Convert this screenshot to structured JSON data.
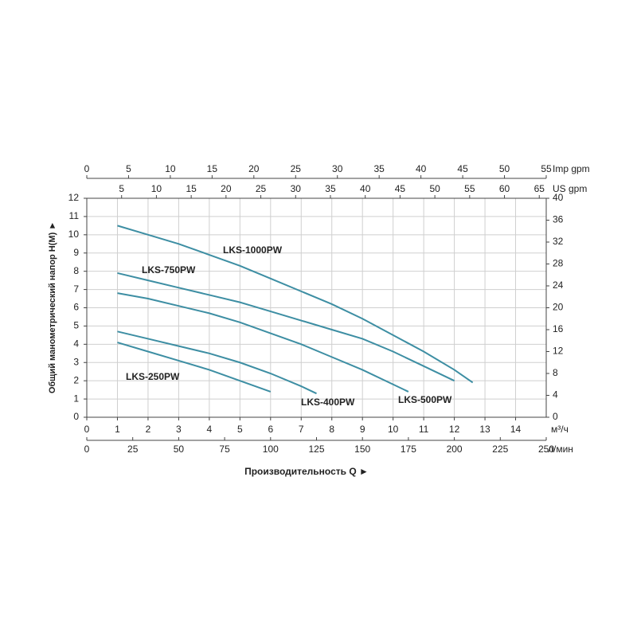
{
  "chart_data": {
    "type": "line",
    "xlabel": "Производительность Q ►",
    "ylabel": "Общий манометрический напор H(M) ►",
    "x_unit": "м³/ч",
    "xlim": [
      0,
      15
    ],
    "xticks": [
      0,
      1,
      2,
      3,
      4,
      5,
      6,
      7,
      8,
      9,
      10,
      11,
      12,
      13,
      14
    ],
    "ylim": [
      0,
      12
    ],
    "yticks": [
      0,
      1,
      2,
      3,
      4,
      5,
      6,
      7,
      8,
      9,
      10,
      11,
      12
    ],
    "y2lim": [
      0,
      40
    ],
    "y2ticks": [
      0,
      4,
      8,
      12,
      16,
      20,
      24,
      28,
      32,
      36,
      40
    ],
    "extra_x_axes": [
      {
        "unit": "л/мин",
        "position": "bottom",
        "lim": [
          0,
          250
        ],
        "ticks": [
          0,
          25,
          50,
          75,
          100,
          125,
          150,
          175,
          200,
          225,
          250
        ]
      },
      {
        "unit": "Imp gpm",
        "position": "top",
        "lim": [
          0,
          55
        ],
        "ticks": [
          0,
          5,
          10,
          15,
          20,
          25,
          30,
          35,
          40,
          45,
          50,
          55
        ]
      },
      {
        "unit": "US gpm",
        "position": "top",
        "lim": [
          0,
          66
        ],
        "ticks": [
          5,
          10,
          15,
          20,
          25,
          30,
          35,
          40,
          45,
          50,
          55,
          60,
          65
        ]
      }
    ],
    "grid": true,
    "series": [
      {
        "name": "LKS-1000PW",
        "color": "#3d8ea3",
        "x": [
          1,
          2,
          3,
          4,
          5,
          6,
          7,
          8,
          9,
          10,
          11,
          12,
          12.6
        ],
        "values": [
          10.5,
          10.0,
          9.5,
          8.9,
          8.3,
          7.6,
          6.9,
          6.2,
          5.4,
          4.5,
          3.6,
          2.6,
          1.9
        ]
      },
      {
        "name": "LKS-750PW",
        "color": "#3d8ea3",
        "x": [
          1,
          2,
          3,
          4,
          5,
          6,
          7,
          8,
          9,
          10,
          11,
          12
        ],
        "values": [
          7.9,
          7.5,
          7.1,
          6.7,
          6.3,
          5.8,
          5.3,
          4.8,
          4.3,
          3.6,
          2.8,
          2.0
        ]
      },
      {
        "name": "LKS-500PW",
        "color": "#3d8ea3",
        "x": [
          1,
          2,
          3,
          4,
          5,
          6,
          7,
          8,
          9,
          10,
          10.5
        ],
        "values": [
          6.8,
          6.5,
          6.1,
          5.7,
          5.2,
          4.6,
          4.0,
          3.3,
          2.6,
          1.8,
          1.4
        ]
      },
      {
        "name": "LKS-400PW",
        "color": "#3d8ea3",
        "x": [
          1,
          2,
          3,
          4,
          5,
          6,
          7,
          7.5
        ],
        "values": [
          4.7,
          4.3,
          3.9,
          3.5,
          3.0,
          2.4,
          1.7,
          1.3
        ]
      },
      {
        "name": "LKS-250PW",
        "color": "#3d8ea3",
        "x": [
          1,
          2,
          3,
          4,
          5,
          6
        ],
        "values": [
          4.1,
          3.6,
          3.1,
          2.6,
          2.0,
          1.4
        ]
      }
    ]
  }
}
